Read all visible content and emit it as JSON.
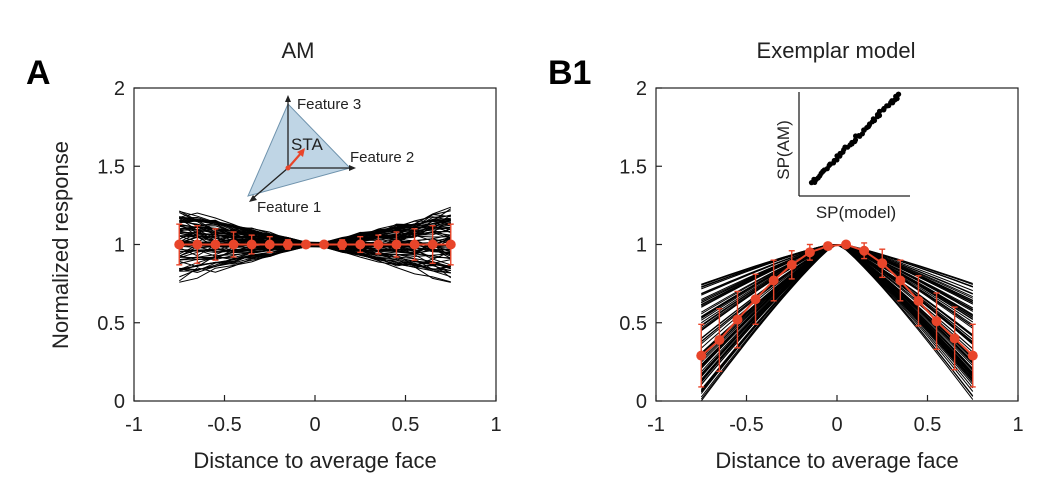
{
  "chart_data": [
    {
      "panel": "A",
      "type": "line",
      "title": "AM",
      "xlabel": "Distance to average face",
      "ylabel": "Normalized response",
      "xlim": [
        -1,
        1
      ],
      "ylim": [
        0,
        2
      ],
      "xticks": [
        "-1",
        "-0.5",
        "0",
        "0.5",
        "1"
      ],
      "yticks": [
        "0",
        "0.5",
        "1",
        "1.5",
        "2"
      ],
      "mean_series": {
        "x": [
          -0.75,
          -0.65,
          -0.55,
          -0.45,
          -0.35,
          -0.25,
          -0.15,
          -0.05,
          0.05,
          0.15,
          0.25,
          0.35,
          0.45,
          0.55,
          0.65,
          0.75
        ],
        "y": [
          1.0,
          1.0,
          1.0,
          1.0,
          1.0,
          1.0,
          1.0,
          1.0,
          1.0,
          1.0,
          1.0,
          1.0,
          1.0,
          1.0,
          1.0,
          1.0
        ],
        "err": [
          0.13,
          0.12,
          0.1,
          0.08,
          0.06,
          0.05,
          0.03,
          0.01,
          0.01,
          0.03,
          0.05,
          0.06,
          0.08,
          0.1,
          0.12,
          0.13
        ]
      },
      "cell_spread_at_edge": 0.15,
      "inset": {
        "labels": [
          "Feature 3",
          "STA",
          "Feature 2",
          "Feature 1"
        ]
      },
      "colors": {
        "mean": "#e8452a",
        "cells": "#000000",
        "inset_fill": "#a9c7dc"
      }
    },
    {
      "panel": "B1",
      "type": "line",
      "title": "Exemplar model",
      "xlabel": "Distance to average face",
      "ylabel": "",
      "xlim": [
        -1,
        1
      ],
      "ylim": [
        0,
        2
      ],
      "xticks": [
        "-1",
        "-0.5",
        "0",
        "0.5",
        "1"
      ],
      "yticks": [
        "0",
        "0.5",
        "1",
        "1.5",
        "2"
      ],
      "mean_series": {
        "x": [
          -0.75,
          -0.65,
          -0.55,
          -0.45,
          -0.35,
          -0.25,
          -0.15,
          -0.05,
          0.05,
          0.15,
          0.25,
          0.35,
          0.45,
          0.55,
          0.65,
          0.75
        ],
        "y": [
          0.29,
          0.39,
          0.52,
          0.65,
          0.77,
          0.87,
          0.95,
          0.99,
          1.0,
          0.96,
          0.88,
          0.77,
          0.64,
          0.51,
          0.4,
          0.29
        ],
        "err": [
          0.2,
          0.2,
          0.18,
          0.16,
          0.13,
          0.09,
          0.05,
          0.02,
          0.02,
          0.05,
          0.09,
          0.13,
          0.16,
          0.18,
          0.2,
          0.2
        ]
      },
      "cell_edge_range": [
        0.0,
        0.76
      ],
      "inset": {
        "type": "scatter",
        "xlabel": "SP(model)",
        "ylabel": "SP(AM)"
      },
      "colors": {
        "mean": "#e8452a",
        "cells": "#000000"
      }
    }
  ],
  "panel_letters": [
    "A",
    "B1"
  ]
}
